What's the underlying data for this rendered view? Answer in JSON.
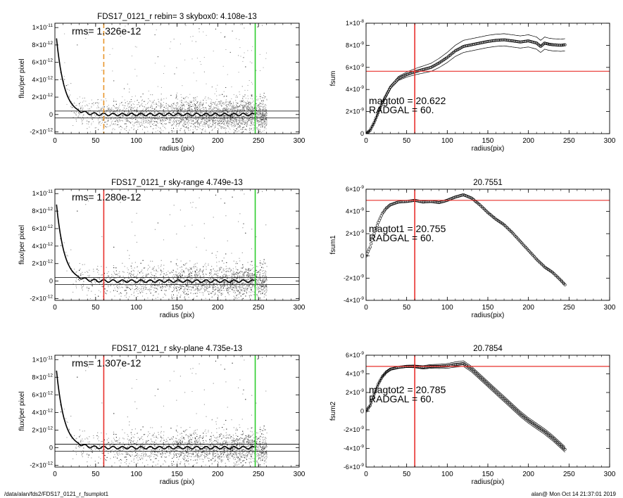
{
  "footer": {
    "path": "/data/alan/fds2/FDS17_0121_r_fsumplot1",
    "stamp": "alan@  Mon Oct 14 21:37:01 2019"
  },
  "colors": {
    "background": "#ffffff",
    "scatter_points": "#9a9a9a",
    "scatter_dark": "#222222",
    "profile": "#000000",
    "red_marker": "#e8302c",
    "green_marker": "#2ecc2e",
    "orange_marker": "#e8962c"
  },
  "chart_data": [
    {
      "id": "left-top",
      "type": "scatter",
      "title": "FDS17_0121_r rebin= 3    skybox0:  4.108e-13",
      "xlabel": "radius (pix)",
      "ylabel": "flux/per pixel",
      "xlim": [
        0,
        300
      ],
      "ylim": [
        -2.2e-12,
        1.05e-11
      ],
      "xticks": [
        0,
        50,
        100,
        150,
        200,
        250,
        300
      ],
      "yticks": [
        -2e-12,
        0,
        2e-12,
        4e-12,
        6e-12,
        8e-12,
        1e-11
      ],
      "ytick_labels": [
        [
          "-2",
          "-12"
        ],
        [
          "0",
          ""
        ],
        [
          "2",
          "-12"
        ],
        [
          "4",
          "-12"
        ],
        [
          "6",
          "-12"
        ],
        [
          "8",
          "-12"
        ],
        [
          "1",
          "-11"
        ]
      ],
      "annotations": [
        {
          "text": "rms= 1.326e-12"
        }
      ],
      "vlines": [
        {
          "x": 60,
          "color": "orange",
          "style": "dashed"
        },
        {
          "x": 246,
          "color": "green",
          "style": "solid"
        }
      ],
      "hlines": [
        4e-13,
        -4e-13
      ],
      "profile": {
        "amplitude": 1.08e-11,
        "scale_length": 9.5
      },
      "grid": false
    },
    {
      "id": "left-mid",
      "type": "scatter",
      "title": "FDS17_0121_r sky-range  4.749e-13",
      "xlabel": "radius (pix)",
      "ylabel": "flux/per pixel",
      "xlim": [
        0,
        300
      ],
      "ylim": [
        -2.2e-12,
        1.05e-11
      ],
      "xticks": [
        0,
        50,
        100,
        150,
        200,
        250,
        300
      ],
      "yticks": [
        -2e-12,
        0,
        2e-12,
        4e-12,
        6e-12,
        8e-12,
        1e-11
      ],
      "ytick_labels": [
        [
          "-2",
          "-12"
        ],
        [
          "0",
          ""
        ],
        [
          "2",
          "-12"
        ],
        [
          "4",
          "-12"
        ],
        [
          "6",
          "-12"
        ],
        [
          "8",
          "-12"
        ],
        [
          "1",
          "-11"
        ]
      ],
      "annotations": [
        {
          "text": "rms= 1.280e-12"
        }
      ],
      "vlines": [
        {
          "x": 60,
          "color": "red",
          "style": "solid"
        },
        {
          "x": 246,
          "color": "green",
          "style": "solid"
        }
      ],
      "hlines": [
        4e-13,
        -4e-13
      ],
      "profile": {
        "amplitude": 1.08e-11,
        "scale_length": 9.5
      },
      "grid": false
    },
    {
      "id": "left-bot",
      "type": "scatter",
      "title": "FDS17_0121_r sky-plane  4.735e-13",
      "xlabel": "radius (pix)",
      "ylabel": "flux/per pixel",
      "xlim": [
        0,
        300
      ],
      "ylim": [
        -2.2e-12,
        1.05e-11
      ],
      "xticks": [
        0,
        50,
        100,
        150,
        200,
        250,
        300
      ],
      "yticks": [
        -2e-12,
        0,
        2e-12,
        4e-12,
        6e-12,
        8e-12,
        1e-11
      ],
      "ytick_labels": [
        [
          "-2",
          "-12"
        ],
        [
          "0",
          ""
        ],
        [
          "2",
          "-12"
        ],
        [
          "4",
          "-12"
        ],
        [
          "6",
          "-12"
        ],
        [
          "8",
          "-12"
        ],
        [
          "1",
          "-11"
        ]
      ],
      "annotations": [
        {
          "text": "rms= 1.307e-12"
        }
      ],
      "vlines": [
        {
          "x": 60,
          "color": "red",
          "style": "solid"
        },
        {
          "x": 246,
          "color": "green",
          "style": "solid"
        }
      ],
      "hlines": [
        4e-13,
        -4e-13
      ],
      "profile": {
        "amplitude": 1.08e-11,
        "scale_length": 9.5
      },
      "grid": false
    },
    {
      "id": "right-top",
      "type": "line",
      "title": "",
      "xlabel": "radius(pix)",
      "ylabel": "fsum",
      "xlim": [
        0,
        300
      ],
      "ylim": [
        0,
        1e-08
      ],
      "xticks": [
        0,
        50,
        100,
        150,
        200,
        250,
        300
      ],
      "yticks": [
        0,
        2e-09,
        4e-09,
        6e-09,
        8e-09,
        1e-08
      ],
      "ytick_labels": [
        [
          "0",
          ""
        ],
        [
          "2",
          "-9"
        ],
        [
          "4",
          "-9"
        ],
        [
          "6",
          "-9"
        ],
        [
          "8",
          "-9"
        ],
        [
          "1",
          "-8"
        ]
      ],
      "annotations": [
        {
          "text": "magtot0 =  20.622"
        },
        {
          "text": "RADGAL =     60."
        }
      ],
      "vlines": [
        {
          "x": 60,
          "color": "red",
          "style": "solid"
        }
      ],
      "hlines_red": [
        5.65e-09
      ],
      "series": [
        {
          "x": [
            0,
            5,
            10,
            15,
            20,
            25,
            30,
            40,
            50,
            60,
            70,
            80,
            90,
            100,
            110,
            120,
            130,
            140,
            150,
            160,
            170,
            180,
            190,
            200,
            210,
            215,
            220,
            225,
            230,
            240,
            245
          ],
          "y": [
            0,
            3e-10,
            1e-09,
            1.9e-09,
            2.8e-09,
            3.5e-09,
            4.2e-09,
            5e-09,
            5.35e-09,
            5.6e-09,
            5.8e-09,
            6e-09,
            6.4e-09,
            6.9e-09,
            7.5e-09,
            7.9e-09,
            8.05e-09,
            8.2e-09,
            8.35e-09,
            8.45e-09,
            8.5e-09,
            8.4e-09,
            8.3e-09,
            8.4e-09,
            8.2e-09,
            7.9e-09,
            8.2e-09,
            8.1e-09,
            8.05e-09,
            8e-09,
            8.05e-09
          ],
          "band": 5.5e-10
        }
      ]
    },
    {
      "id": "right-mid",
      "type": "line",
      "title": "20.7551",
      "xlabel": "radius(pix)",
      "ylabel": "fsum1",
      "xlim": [
        0,
        300
      ],
      "ylim": [
        -4e-09,
        6e-09
      ],
      "xticks": [
        0,
        50,
        100,
        150,
        200,
        250,
        300
      ],
      "yticks": [
        -4e-09,
        -2e-09,
        0,
        2e-09,
        4e-09,
        6e-09
      ],
      "ytick_labels": [
        [
          "-4",
          "-9"
        ],
        [
          "-2",
          "-9"
        ],
        [
          "0",
          ""
        ],
        [
          "2",
          "-9"
        ],
        [
          "4",
          "-9"
        ],
        [
          "6",
          "-9"
        ]
      ],
      "annotations": [
        {
          "text": "magtot1 =  20.755"
        },
        {
          "text": "RADGAL =     60."
        }
      ],
      "vlines": [
        {
          "x": 60,
          "color": "red",
          "style": "solid"
        }
      ],
      "hlines_red": [
        5e-09
      ],
      "series": [
        {
          "x": [
            0,
            5,
            10,
            15,
            20,
            25,
            30,
            40,
            50,
            60,
            70,
            80,
            90,
            100,
            110,
            120,
            130,
            140,
            150,
            160,
            170,
            180,
            190,
            200,
            210,
            220,
            230,
            240,
            245
          ],
          "y": [
            0,
            8e-10,
            2e-09,
            3e-09,
            3.8e-09,
            4.3e-09,
            4.6e-09,
            4.85e-09,
            4.9e-09,
            5e-09,
            4.85e-09,
            4.9e-09,
            4.8e-09,
            5e-09,
            5.3e-09,
            5.5e-09,
            5.2e-09,
            4.6e-09,
            3.9e-09,
            3.3e-09,
            2.8e-09,
            2.1e-09,
            1.3e-09,
            5e-10,
            -3e-10,
            -1e-09,
            -1.5e-09,
            -2.2e-09,
            -2.6e-09
          ],
          "band": 0
        }
      ]
    },
    {
      "id": "right-bot",
      "type": "line",
      "title": "20.7854",
      "xlabel": "radius(pix)",
      "ylabel": "fsum2",
      "xlim": [
        0,
        300
      ],
      "ylim": [
        -6e-09,
        6e-09
      ],
      "xticks": [
        0,
        50,
        100,
        150,
        200,
        250,
        300
      ],
      "yticks": [
        -6e-09,
        -4e-09,
        -2e-09,
        0,
        2e-09,
        4e-09,
        6e-09
      ],
      "ytick_labels": [
        [
          "-6",
          "-9"
        ],
        [
          "-4",
          "-9"
        ],
        [
          "-2",
          "-9"
        ],
        [
          "0",
          ""
        ],
        [
          "2",
          "-9"
        ],
        [
          "4",
          "-9"
        ],
        [
          "6",
          "-9"
        ]
      ],
      "annotations": [
        {
          "text": "magtot2 =  20.785"
        },
        {
          "text": "RADGAL =     60."
        }
      ],
      "vlines": [
        {
          "x": 60,
          "color": "red",
          "style": "solid"
        }
      ],
      "hlines_red": [
        4.8e-09
      ],
      "series": [
        {
          "x": [
            0,
            5,
            10,
            15,
            20,
            25,
            30,
            40,
            50,
            60,
            70,
            80,
            90,
            100,
            110,
            120,
            130,
            140,
            150,
            160,
            170,
            180,
            190,
            200,
            210,
            220,
            230,
            240,
            245
          ],
          "y": [
            0,
            6e-10,
            1.8e-09,
            2.9e-09,
            3.7e-09,
            4.2e-09,
            4.5e-09,
            4.7e-09,
            4.8e-09,
            4.8e-09,
            4.7e-09,
            4.8e-09,
            4.8e-09,
            4.85e-09,
            5e-09,
            5.1e-09,
            4.5e-09,
            3.7e-09,
            2.9e-09,
            2.1e-09,
            1.3e-09,
            5e-10,
            -3e-10,
            -1e-09,
            -1.6e-09,
            -2.2e-09,
            -2.9e-09,
            -3.7e-09,
            -4.1e-09
          ],
          "band": 3e-10
        }
      ]
    }
  ]
}
